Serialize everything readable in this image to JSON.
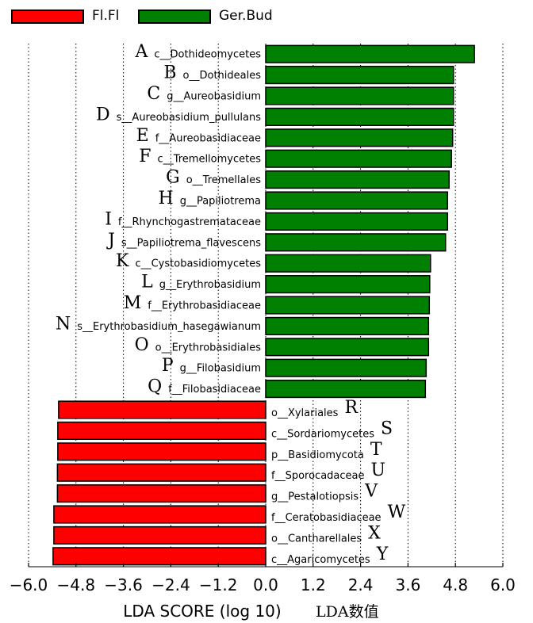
{
  "legend": {
    "items": [
      {
        "label": "Fl.Fl",
        "color": "#ff0000"
      },
      {
        "label": "Ger.Bud",
        "color": "#008000"
      }
    ]
  },
  "axis": {
    "xlabel_main": "LDA SCORE (log 10)",
    "xlabel_cn": "LDA数值"
  },
  "chart_data": {
    "type": "bar",
    "orientation": "horizontal",
    "xlim": [
      -6.0,
      6.0
    ],
    "xticks": [
      -6.0,
      -4.8,
      -3.6,
      -2.4,
      -1.2,
      0.0,
      1.2,
      2.4,
      3.6,
      4.8,
      6.0
    ],
    "xtick_labels": [
      "−6.0",
      "−4.8",
      "−3.6",
      "−2.4",
      "−1.2",
      "0.0",
      "1.2",
      "2.4",
      "3.6",
      "4.8",
      "6.0"
    ],
    "grid": "vertical-dotted",
    "legend_placement": "top-left",
    "series": [
      {
        "name": "Fl.Fl",
        "color": "#ff0000"
      },
      {
        "name": "Ger.Bud",
        "color": "#008000"
      }
    ],
    "bars": [
      {
        "letter": "A",
        "label": "c__Dothideomycetes",
        "value": 5.28,
        "group": "Ger.Bud"
      },
      {
        "letter": "B",
        "label": "o__Dothideales",
        "value": 4.75,
        "group": "Ger.Bud"
      },
      {
        "letter": "C",
        "label": "g__Aureobasidium",
        "value": 4.75,
        "group": "Ger.Bud"
      },
      {
        "letter": "D",
        "label": "s__Aureobasidium_pullulans",
        "value": 4.75,
        "group": "Ger.Bud"
      },
      {
        "letter": "E",
        "label": "f__Aureobasidiaceae",
        "value": 4.73,
        "group": "Ger.Bud"
      },
      {
        "letter": "F",
        "label": "c__Tremellomycetes",
        "value": 4.7,
        "group": "Ger.Bud"
      },
      {
        "letter": "G",
        "label": "o__Tremellales",
        "value": 4.64,
        "group": "Ger.Bud"
      },
      {
        "letter": "H",
        "label": "g__Papiliotrema",
        "value": 4.6,
        "group": "Ger.Bud"
      },
      {
        "letter": "I",
        "label": "f__Rhynchogastremataceae",
        "value": 4.6,
        "group": "Ger.Bud"
      },
      {
        "letter": "J",
        "label": "s__Papiliotrema_flavescens",
        "value": 4.55,
        "group": "Ger.Bud"
      },
      {
        "letter": "K",
        "label": "c__Cystobasidiomycetes",
        "value": 4.17,
        "group": "Ger.Bud"
      },
      {
        "letter": "L",
        "label": "g__Erythrobasidium",
        "value": 4.15,
        "group": "Ger.Bud"
      },
      {
        "letter": "M",
        "label": "f__Erythrobasidiaceae",
        "value": 4.14,
        "group": "Ger.Bud"
      },
      {
        "letter": "N",
        "label": "s__Erythrobasidium_hasegawianum",
        "value": 4.12,
        "group": "Ger.Bud"
      },
      {
        "letter": "O",
        "label": "o__Erythrobasidiales",
        "value": 4.12,
        "group": "Ger.Bud"
      },
      {
        "letter": "P",
        "label": "g__Filobasidium",
        "value": 4.06,
        "group": "Ger.Bud"
      },
      {
        "letter": "Q",
        "label": "f__Filobasidiaceae",
        "value": 4.04,
        "group": "Ger.Bud"
      },
      {
        "letter": "R",
        "label": "o__Xylariales",
        "value": -5.24,
        "group": "Fl.Fl"
      },
      {
        "letter": "S",
        "label": "c__Sordariomycetes",
        "value": -5.26,
        "group": "Fl.Fl"
      },
      {
        "letter": "T",
        "label": "p__Basidiomycota",
        "value": -5.26,
        "group": "Fl.Fl"
      },
      {
        "letter": "U",
        "label": "f__Sporocadaceae",
        "value": -5.27,
        "group": "Fl.Fl"
      },
      {
        "letter": "V",
        "label": "g__Pestalotiopsis",
        "value": -5.27,
        "group": "Fl.Fl"
      },
      {
        "letter": "W",
        "label": "f__Ceratobasidiaceae",
        "value": -5.36,
        "group": "Fl.Fl"
      },
      {
        "letter": "X",
        "label": "o__Cantharellales",
        "value": -5.36,
        "group": "Fl.Fl"
      },
      {
        "letter": "Y",
        "label": "c__Agaricomycetes",
        "value": -5.38,
        "group": "Fl.Fl"
      }
    ]
  }
}
